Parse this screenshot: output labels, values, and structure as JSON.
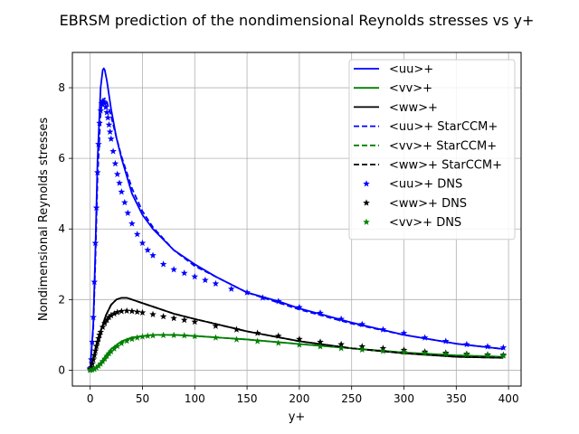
{
  "chart_data": {
    "type": "line",
    "title": "EBRSM prediction of the nondimensional Reynolds stresses vs y+",
    "xlabel": "y+",
    "ylabel": "Nondimensional Reynolds stresses",
    "xlim": [
      -17,
      412
    ],
    "ylim": [
      -0.45,
      9.0
    ],
    "xticks": [
      0,
      50,
      100,
      150,
      200,
      250,
      300,
      350,
      400
    ],
    "yticks": [
      0,
      2,
      4,
      6,
      8
    ],
    "grid": true,
    "legend_position": "top-right",
    "series": [
      {
        "name": "<uu>+",
        "style": "solid",
        "color": "#0000ff",
        "x": [
          0,
          3,
          5,
          7,
          10,
          12,
          13,
          14,
          16,
          20,
          25,
          30,
          40,
          50,
          60,
          80,
          100,
          120,
          150,
          180,
          200,
          250,
          300,
          350,
          395
        ],
        "y": [
          0,
          1.3,
          3.4,
          5.9,
          8.0,
          8.5,
          8.55,
          8.5,
          8.2,
          7.4,
          6.6,
          6.0,
          5.0,
          4.4,
          4.0,
          3.4,
          3.0,
          2.65,
          2.2,
          1.95,
          1.75,
          1.35,
          1.0,
          0.75,
          0.6
        ]
      },
      {
        "name": "<vv>+",
        "style": "solid",
        "color": "#008000",
        "x": [
          0,
          5,
          10,
          15,
          20,
          30,
          40,
          60,
          80,
          100,
          150,
          200,
          250,
          300,
          350,
          395
        ],
        "y": [
          0,
          0.05,
          0.2,
          0.42,
          0.6,
          0.82,
          0.93,
          1.0,
          1.0,
          0.97,
          0.87,
          0.74,
          0.62,
          0.5,
          0.42,
          0.38
        ]
      },
      {
        "name": "<ww>+",
        "style": "solid",
        "color": "#000000",
        "x": [
          0,
          5,
          10,
          15,
          20,
          25,
          30,
          35,
          40,
          50,
          60,
          80,
          100,
          150,
          200,
          250,
          300,
          350,
          395
        ],
        "y": [
          0,
          0.5,
          1.1,
          1.55,
          1.85,
          2.0,
          2.05,
          2.05,
          2.0,
          1.9,
          1.8,
          1.6,
          1.45,
          1.1,
          0.82,
          0.62,
          0.48,
          0.38,
          0.35
        ]
      },
      {
        "name": "<uu>+ StarCCM+",
        "style": "dashed",
        "color": "#0000ff",
        "x": [
          0,
          3,
          5,
          7,
          10,
          12,
          14,
          16,
          20,
          25,
          30,
          40,
          50,
          60,
          80,
          100,
          150,
          200,
          250,
          300,
          350,
          395
        ],
        "y": [
          0,
          1.2,
          3.1,
          5.4,
          7.3,
          7.65,
          7.7,
          7.6,
          7.2,
          6.6,
          6.05,
          5.15,
          4.5,
          4.05,
          3.4,
          2.95,
          2.2,
          1.72,
          1.32,
          1.0,
          0.75,
          0.6
        ]
      },
      {
        "name": "<vv>+ StarCCM+",
        "style": "dashed",
        "color": "#008000",
        "x": [
          0,
          5,
          10,
          15,
          20,
          30,
          40,
          60,
          80,
          100,
          150,
          200,
          250,
          300,
          350,
          395
        ],
        "y": [
          0,
          0.04,
          0.18,
          0.4,
          0.58,
          0.8,
          0.92,
          1.0,
          1.0,
          0.97,
          0.87,
          0.74,
          0.62,
          0.5,
          0.42,
          0.38
        ]
      },
      {
        "name": "<ww>+ StarCCM+",
        "style": "dashed",
        "color": "#000000",
        "x": [
          0,
          5,
          10,
          15,
          20,
          25,
          30,
          35,
          40,
          50,
          60,
          80,
          100,
          150,
          200,
          250,
          300,
          350,
          395
        ],
        "y": [
          0,
          0.5,
          1.1,
          1.55,
          1.85,
          2.0,
          2.05,
          2.05,
          2.0,
          1.9,
          1.8,
          1.6,
          1.45,
          1.1,
          0.82,
          0.62,
          0.48,
          0.38,
          0.35
        ]
      },
      {
        "name": "<uu>+ DNS",
        "style": "star",
        "color": "#0000ff",
        "x": [
          0,
          1,
          2,
          3,
          4,
          5,
          6,
          7,
          8,
          9,
          10,
          11,
          12,
          13,
          14,
          15,
          16,
          17,
          18,
          19,
          20,
          22,
          24,
          26,
          28,
          30,
          33,
          36,
          40,
          45,
          50,
          55,
          60,
          70,
          80,
          90,
          100,
          110,
          120,
          135,
          150,
          165,
          180,
          200,
          220,
          240,
          260,
          280,
          300,
          320,
          340,
          360,
          380,
          395
        ],
        "y": [
          0.05,
          0.3,
          0.8,
          1.5,
          2.5,
          3.6,
          4.6,
          5.6,
          6.4,
          7.0,
          7.35,
          7.55,
          7.62,
          7.6,
          7.55,
          7.45,
          7.3,
          7.15,
          6.95,
          6.75,
          6.55,
          6.2,
          5.85,
          5.55,
          5.3,
          5.05,
          4.75,
          4.45,
          4.15,
          3.85,
          3.6,
          3.4,
          3.25,
          3.0,
          2.85,
          2.75,
          2.65,
          2.55,
          2.45,
          2.3,
          2.2,
          2.05,
          1.95,
          1.78,
          1.62,
          1.45,
          1.3,
          1.15,
          1.05,
          0.92,
          0.82,
          0.73,
          0.67,
          0.64
        ]
      },
      {
        "name": "<ww>+ DNS",
        "style": "star",
        "color": "#000000",
        "x": [
          0,
          1,
          2,
          3,
          4,
          5,
          6,
          7,
          8,
          9,
          10,
          12,
          14,
          16,
          18,
          20,
          23,
          26,
          30,
          35,
          40,
          45,
          50,
          60,
          70,
          80,
          90,
          100,
          120,
          140,
          160,
          180,
          200,
          220,
          240,
          260,
          280,
          300,
          320,
          340,
          360,
          380,
          395
        ],
        "y": [
          0.02,
          0.08,
          0.18,
          0.3,
          0.42,
          0.55,
          0.68,
          0.8,
          0.9,
          1.0,
          1.08,
          1.22,
          1.33,
          1.42,
          1.5,
          1.55,
          1.6,
          1.64,
          1.67,
          1.68,
          1.67,
          1.65,
          1.63,
          1.58,
          1.52,
          1.47,
          1.42,
          1.37,
          1.25,
          1.15,
          1.05,
          0.97,
          0.88,
          0.8,
          0.73,
          0.67,
          0.62,
          0.57,
          0.52,
          0.49,
          0.46,
          0.44,
          0.43
        ]
      },
      {
        "name": "<vv>+ DNS",
        "style": "star",
        "color": "#008000",
        "x": [
          0,
          2,
          4,
          6,
          8,
          10,
          12,
          14,
          16,
          18,
          20,
          23,
          26,
          30,
          35,
          40,
          45,
          50,
          55,
          60,
          70,
          80,
          90,
          100,
          120,
          140,
          160,
          180,
          200,
          220,
          240,
          260,
          280,
          300,
          320,
          340,
          360,
          380,
          395
        ],
        "y": [
          0.0,
          0.01,
          0.03,
          0.07,
          0.12,
          0.18,
          0.25,
          0.32,
          0.4,
          0.47,
          0.53,
          0.61,
          0.68,
          0.76,
          0.83,
          0.88,
          0.92,
          0.95,
          0.97,
          0.98,
          0.99,
          0.99,
          0.98,
          0.96,
          0.92,
          0.87,
          0.82,
          0.77,
          0.72,
          0.67,
          0.62,
          0.58,
          0.54,
          0.51,
          0.48,
          0.46,
          0.44,
          0.42,
          0.41
        ]
      }
    ]
  }
}
